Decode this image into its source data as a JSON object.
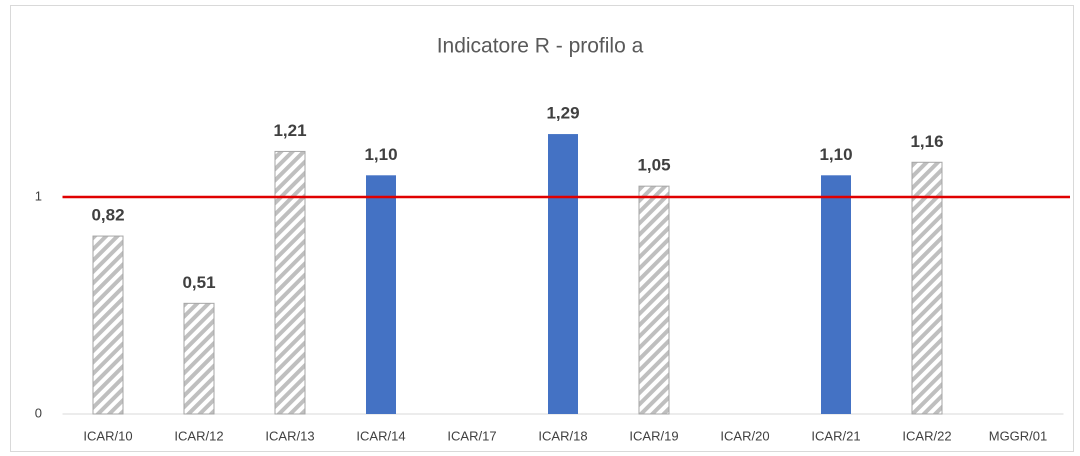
{
  "chart_data": {
    "type": "bar",
    "title": "Indicatore R - profilo a",
    "categories": [
      "ICAR/10",
      "ICAR/12",
      "ICAR/13",
      "ICAR/14",
      "ICAR/17",
      "ICAR/18",
      "ICAR/19",
      "ICAR/20",
      "ICAR/21",
      "ICAR/22",
      "MGGR/01"
    ],
    "values": [
      0.82,
      0.51,
      1.21,
      1.1,
      null,
      1.29,
      1.05,
      null,
      1.1,
      1.16,
      null
    ],
    "value_labels": [
      "0,82",
      "0,51",
      "1,21",
      "1,10",
      null,
      "1,29",
      "1,05",
      null,
      "1,10",
      "1,16",
      null
    ],
    "colors": [
      "#a6a6a6",
      "#a6a6a6",
      "#a6a6a6",
      "#4472c4",
      null,
      "#4472c4",
      "#a6a6a6",
      null,
      "#4472c4",
      "#a6a6a6",
      null
    ],
    "hatched": [
      true,
      true,
      true,
      false,
      null,
      false,
      true,
      null,
      false,
      true,
      null
    ],
    "reference_line": {
      "value": 1,
      "color": "#e00000"
    },
    "ylim": [
      0,
      1.5
    ],
    "yticks": [
      0,
      1
    ],
    "grid": false
  }
}
